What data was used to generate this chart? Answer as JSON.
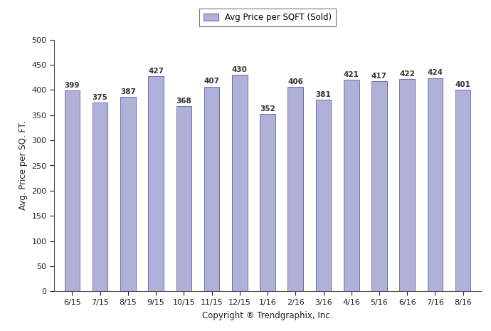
{
  "categories": [
    "6/15",
    "7/15",
    "8/15",
    "9/15",
    "10/15",
    "11/15",
    "12/15",
    "1/16",
    "2/16",
    "3/16",
    "4/16",
    "5/16",
    "6/16",
    "7/16",
    "8/16"
  ],
  "values": [
    399,
    375,
    387,
    427,
    368,
    407,
    430,
    352,
    406,
    381,
    421,
    417,
    422,
    424,
    401
  ],
  "bar_color": "#b0b0d8",
  "bar_edge_color": "#7070aa",
  "bar_edge_width": 0.7,
  "ylabel": "Avg. Price per SQ. FT.",
  "xlabel": "Copyright ® Trendgraphix, Inc.",
  "ylim": [
    0,
    500
  ],
  "yticks": [
    0,
    50,
    100,
    150,
    200,
    250,
    300,
    350,
    400,
    450,
    500
  ],
  "legend_label": "Avg Price per SQFT (Sold)",
  "value_label_fontsize": 7.5,
  "axis_label_fontsize": 8.5,
  "tick_fontsize": 8,
  "legend_fontsize": 8.5,
  "bar_width": 0.55,
  "fig_width": 6.9,
  "fig_height": 4.65,
  "dpi": 100,
  "background_color": "#ffffff",
  "spine_color": "#555555",
  "legend_edge_color": "#555555",
  "value_label_color": "#333333"
}
